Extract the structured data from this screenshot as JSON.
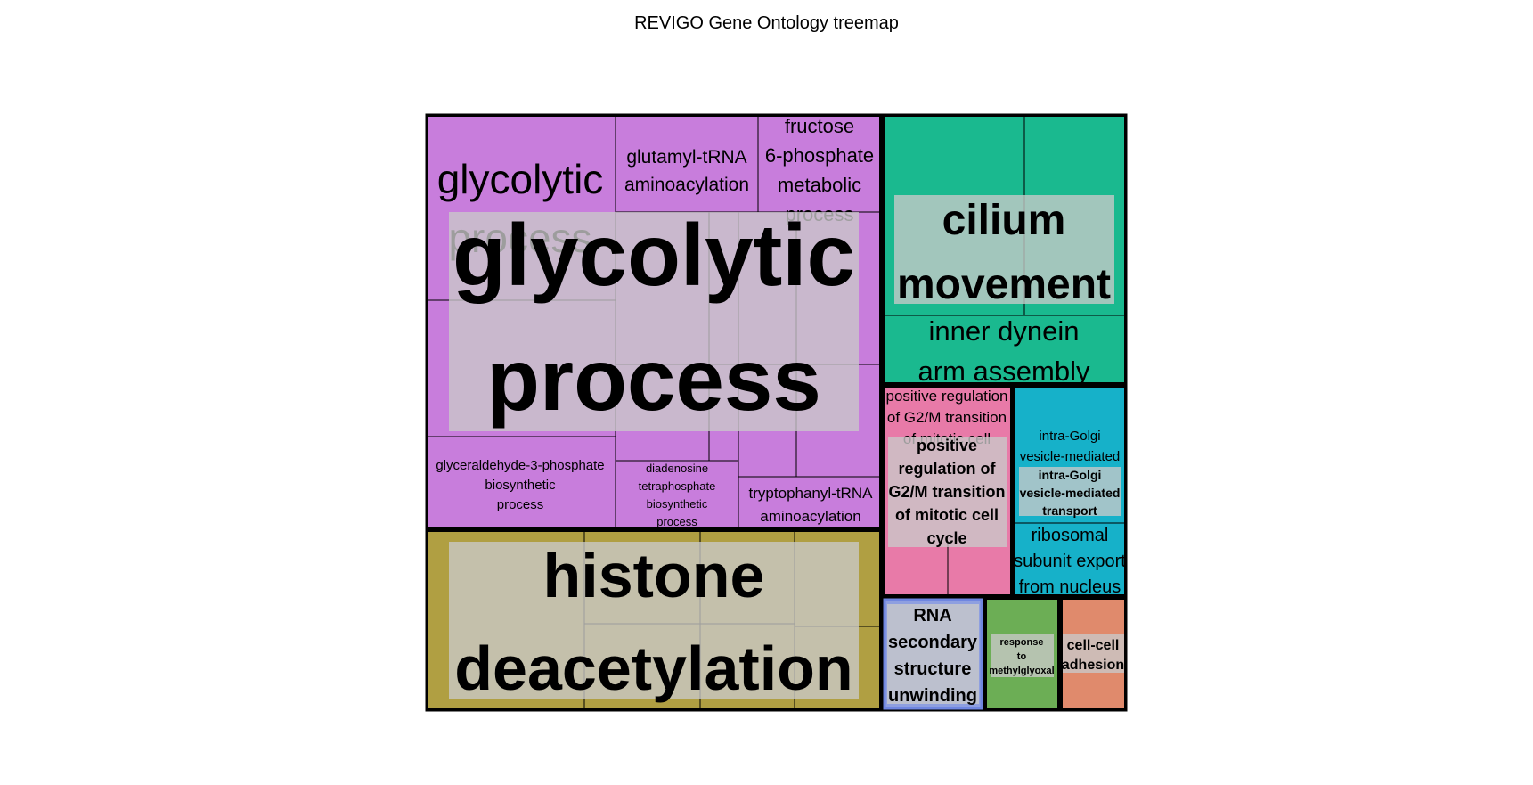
{
  "title": "REVIGO Gene Ontology treemap",
  "colors": {
    "glycolytic": "#c87ddc",
    "histone": "#b09f42",
    "cilium": "#1ab98f",
    "g2m": "#e87aa8",
    "golgi": "#16b1c9",
    "rna": "#8e9fe0",
    "methylglyoxal": "#6cae55",
    "adhesion": "#e08a6c",
    "overlay": "#c9c9c9",
    "border": "#000000"
  },
  "groups": [
    {
      "key": "glycolytic",
      "label": "glycolytic process",
      "label_lines": [
        "glycolytic",
        "process"
      ],
      "color_key": "glycolytic",
      "terms": [
        {
          "label": "glycolytic process",
          "lines": [
            "glycolytic",
            "process"
          ]
        },
        {
          "label": "glutamyl-tRNA aminoacylation",
          "lines": [
            "glutamyl-tRNA",
            "aminoacylation"
          ]
        },
        {
          "label": "fructose 6-phosphate metabolic process",
          "lines": [
            "fructose",
            "6-phosphate",
            "metabolic",
            "process"
          ]
        },
        {
          "label": "glyceraldehyde-3-phosphate biosynthetic process",
          "lines": [
            "glyceraldehyde-3-phosphate",
            "biosynthetic",
            "process"
          ]
        },
        {
          "label": "diadenosine tetraphosphate biosynthetic process",
          "lines": [
            "diadenosine",
            "tetraphosphate",
            "biosynthetic",
            "process"
          ]
        },
        {
          "label": "tryptophanyl-tRNA aminoacylation",
          "lines": [
            "tryptophanyl-tRNA",
            "aminoacylation"
          ]
        }
      ]
    },
    {
      "key": "histone",
      "label": "histone deacetylation",
      "label_lines": [
        "histone",
        "deacetylation"
      ],
      "color_key": "histone",
      "terms": []
    },
    {
      "key": "cilium",
      "label": "cilium movement",
      "label_lines": [
        "cilium",
        "movement"
      ],
      "color_key": "cilium",
      "terms": [
        {
          "label": "inner dynein arm assembly",
          "lines": [
            "inner dynein",
            "arm assembly"
          ]
        }
      ]
    },
    {
      "key": "g2m",
      "label": "positive regulation of G2/M transition of mitotic cell cycle",
      "label_lines": [
        "positive",
        "regulation of",
        "G2/M transition",
        "of mitotic cell",
        "cycle"
      ],
      "color_key": "g2m",
      "terms": [
        {
          "label": "positive regulation of G2/M transition of mitotic cell cycle",
          "lines": [
            "positive regulation",
            "of G2/M transition",
            "of mitotic cell"
          ]
        }
      ]
    },
    {
      "key": "golgi",
      "label": "intra-Golgi vesicle-mediated transport",
      "label_lines": [
        "intra-Golgi",
        "vesicle-mediated",
        "transport"
      ],
      "color_key": "golgi",
      "terms": [
        {
          "label": "intra-Golgi vesicle-mediated transport",
          "lines": [
            "intra-Golgi",
            "vesicle-mediated"
          ]
        },
        {
          "label": "ribosomal subunit export from nucleus",
          "lines": [
            "ribosomal",
            "subunit export",
            "from nucleus"
          ]
        }
      ]
    },
    {
      "key": "rna",
      "label": "RNA secondary structure unwinding",
      "label_lines": [
        "RNA",
        "secondary",
        "structure",
        "unwinding"
      ],
      "color_key": "rna",
      "terms": []
    },
    {
      "key": "methylglyoxal",
      "label": "response to methylglyoxal",
      "label_lines": [
        "response",
        "to",
        "methylglyoxal"
      ],
      "color_key": "methylglyoxal",
      "terms": []
    },
    {
      "key": "adhesion",
      "label": "cell-cell adhesion",
      "label_lines": [
        "cell-cell",
        "adhesion"
      ],
      "color_key": "adhesion",
      "terms": []
    }
  ]
}
